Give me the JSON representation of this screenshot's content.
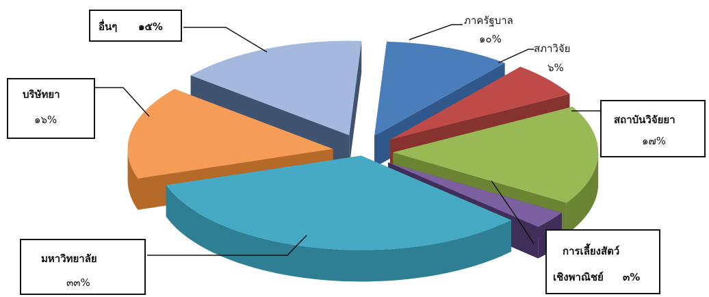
{
  "chart_data": {
    "type": "pie",
    "title": "",
    "categories": [
      "ภาครัฐบาล",
      "สภาวิจัย",
      "สถาบันวิจัยยา",
      "การเลี้ยงสัตว์เชิงพาณิชย์",
      "มหาวิทยาลัย",
      "บริษัทยา",
      "อื่นๆ"
    ],
    "values": [
      10,
      6,
      17,
      3,
      33,
      16,
      15
    ],
    "slices": [
      {
        "label": "ภาครัฐบาล",
        "label_line2": "",
        "value_text": "๑๐%",
        "value": 10,
        "color": "#4a7ebb",
        "side": "#31588a"
      },
      {
        "label": "สภาวิจัย",
        "label_line2": "",
        "value_text": "๖%",
        "value": 6,
        "color": "#be4b48",
        "side": "#86322f"
      },
      {
        "label": "สถาบันวิจัยยา",
        "label_line2": "",
        "value_text": "๑๗%",
        "value": 17,
        "color": "#98b954",
        "side": "#6a8434"
      },
      {
        "label": "การเลี้ยงสัตว์",
        "label_line2": "เชิงพาณิชย์",
        "value_text": "๓%",
        "value": 3,
        "color": "#7d60a0",
        "side": "#3f2e57"
      },
      {
        "label": "มหาวิทยาลัย",
        "label_line2": "",
        "value_text": "๓๓%",
        "value": 33,
        "color": "#46aac5",
        "side": "#2e7e94"
      },
      {
        "label": "บริษัทยา",
        "label_line2": "",
        "value_text": "๑๖%",
        "value": 16,
        "color": "#f59d56",
        "side": "#b66a2a"
      },
      {
        "label": "อื่นๆ",
        "label_line2": "",
        "value_text": "๑๕%",
        "value": 15,
        "color": "#a5b9de",
        "side": "#3f5270"
      }
    ]
  }
}
